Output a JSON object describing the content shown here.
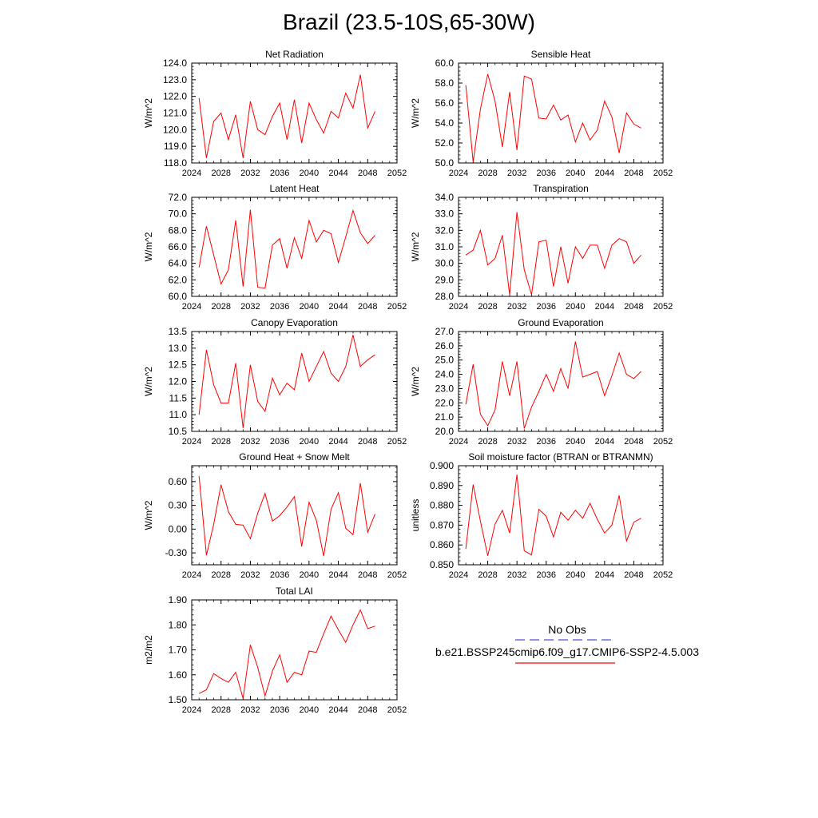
{
  "figure": {
    "title": "Brazil (23.5-10S,65-30W)"
  },
  "legend": {
    "items": [
      {
        "label": "No Obs",
        "color": "#5050d0",
        "style": "dashed"
      },
      {
        "label": "b.e21.BSSP245cmip6.f09_g17.CMIP6-SSP2-4.5.003",
        "color": "#ff0000",
        "style": "solid"
      }
    ]
  },
  "chart_data": [
    {
      "type": "line",
      "title": "Net Radiation",
      "ylabel": "W/m^2",
      "xlabel": "",
      "xlim": [
        2024,
        2052
      ],
      "ylim": [
        118,
        124
      ],
      "xticks": [
        "2024",
        "2028",
        "2032",
        "2036",
        "2040",
        "2044",
        "2048",
        "2052"
      ],
      "yticks": [
        "118.0",
        "119.0",
        "120.0",
        "121.0",
        "122.0",
        "123.0",
        "124.0"
      ],
      "x": [
        2025,
        2026,
        2027,
        2028,
        2029,
        2030,
        2031,
        2032,
        2033,
        2034,
        2035,
        2036,
        2037,
        2038,
        2039,
        2040,
        2041,
        2042,
        2043,
        2044,
        2045,
        2046,
        2047,
        2048,
        2049
      ],
      "series": [
        {
          "color": "#ff0000",
          "values": [
            121.9,
            118.3,
            120.5,
            121.0,
            119.4,
            120.9,
            118.3,
            121.7,
            120.0,
            119.7,
            120.8,
            121.6,
            119.4,
            121.8,
            119.2,
            121.6,
            120.6,
            119.8,
            121.1,
            120.7,
            122.2,
            121.3,
            123.3,
            120.1,
            121.1
          ]
        }
      ]
    },
    {
      "type": "line",
      "title": "Sensible Heat",
      "ylabel": "W/m^2",
      "xlabel": "",
      "xlim": [
        2024,
        2052
      ],
      "ylim": [
        50,
        60
      ],
      "xticks": [
        "2024",
        "2028",
        "2032",
        "2036",
        "2040",
        "2044",
        "2048",
        "2052"
      ],
      "yticks": [
        "50.0",
        "52.0",
        "54.0",
        "56.0",
        "58.0",
        "60.0"
      ],
      "x": [
        2025,
        2026,
        2027,
        2028,
        2029,
        2030,
        2031,
        2032,
        2033,
        2034,
        2035,
        2036,
        2037,
        2038,
        2039,
        2040,
        2041,
        2042,
        2043,
        2044,
        2045,
        2046,
        2047,
        2048,
        2049
      ],
      "series": [
        {
          "color": "#ff0000",
          "values": [
            57.8,
            50.1,
            55.4,
            58.9,
            56.2,
            51.6,
            57.1,
            51.3,
            58.7,
            58.4,
            54.5,
            54.4,
            55.8,
            54.3,
            54.8,
            52.1,
            54.0,
            52.3,
            53.3,
            56.2,
            54.6,
            51.0,
            55.0,
            53.9,
            53.5
          ]
        }
      ]
    },
    {
      "type": "line",
      "title": "Latent Heat",
      "ylabel": "W/m^2",
      "xlabel": "",
      "xlim": [
        2024,
        2052
      ],
      "ylim": [
        60,
        72
      ],
      "xticks": [
        "2024",
        "2028",
        "2032",
        "2036",
        "2040",
        "2044",
        "2048",
        "2052"
      ],
      "yticks": [
        "60.0",
        "62.0",
        "64.0",
        "66.0",
        "68.0",
        "70.0",
        "72.0"
      ],
      "x": [
        2025,
        2026,
        2027,
        2028,
        2029,
        2030,
        2031,
        2032,
        2033,
        2034,
        2035,
        2036,
        2037,
        2038,
        2039,
        2040,
        2041,
        2042,
        2043,
        2044,
        2045,
        2046,
        2047,
        2048,
        2049
      ],
      "series": [
        {
          "color": "#ff0000",
          "values": [
            63.5,
            68.5,
            65.0,
            61.5,
            63.2,
            69.2,
            61.2,
            70.5,
            61.1,
            61.0,
            66.2,
            67.0,
            63.4,
            67.1,
            64.6,
            69.2,
            66.6,
            68.0,
            67.6,
            64.1,
            67.2,
            70.4,
            67.7,
            66.4,
            67.4
          ]
        }
      ]
    },
    {
      "type": "line",
      "title": "Transpiration",
      "ylabel": "W/m^2",
      "xlabel": "",
      "xlim": [
        2024,
        2052
      ],
      "ylim": [
        28,
        34
      ],
      "xticks": [
        "2024",
        "2028",
        "2032",
        "2036",
        "2040",
        "2044",
        "2048",
        "2052"
      ],
      "yticks": [
        "28.0",
        "29.0",
        "30.0",
        "31.0",
        "32.0",
        "33.0",
        "34.0"
      ],
      "x": [
        2025,
        2026,
        2027,
        2028,
        2029,
        2030,
        2031,
        2032,
        2033,
        2034,
        2035,
        2036,
        2037,
        2038,
        2039,
        2040,
        2041,
        2042,
        2043,
        2044,
        2045,
        2046,
        2047,
        2048,
        2049
      ],
      "series": [
        {
          "color": "#ff0000",
          "values": [
            30.5,
            30.8,
            32.0,
            29.9,
            30.3,
            31.7,
            28.1,
            33.1,
            29.6,
            28.1,
            31.3,
            31.4,
            28.6,
            31.0,
            28.8,
            31.0,
            30.3,
            31.1,
            31.1,
            29.7,
            31.1,
            31.5,
            31.3,
            30.0,
            30.5
          ]
        }
      ]
    },
    {
      "type": "line",
      "title": "Canopy Evaporation",
      "ylabel": "W/m^2",
      "xlabel": "",
      "xlim": [
        2024,
        2052
      ],
      "ylim": [
        10.5,
        13.5
      ],
      "xticks": [
        "2024",
        "2028",
        "2032",
        "2036",
        "2040",
        "2044",
        "2048",
        "2052"
      ],
      "yticks": [
        "10.5",
        "11.0",
        "11.5",
        "12.0",
        "12.5",
        "13.0",
        "13.5"
      ],
      "x": [
        2025,
        2026,
        2027,
        2028,
        2029,
        2030,
        2031,
        2032,
        2033,
        2034,
        2035,
        2036,
        2037,
        2038,
        2039,
        2040,
        2041,
        2042,
        2043,
        2044,
        2045,
        2046,
        2047,
        2048,
        2049
      ],
      "series": [
        {
          "color": "#ff0000",
          "values": [
            11.0,
            12.95,
            11.9,
            11.35,
            11.35,
            12.55,
            10.6,
            12.5,
            11.4,
            11.1,
            12.1,
            11.6,
            11.95,
            11.75,
            12.85,
            12.0,
            12.45,
            12.9,
            12.25,
            12.0,
            12.45,
            13.4,
            12.45,
            12.65,
            12.8
          ]
        }
      ]
    },
    {
      "type": "line",
      "title": "Ground Evaporation",
      "ylabel": "W/m^2",
      "xlabel": "",
      "xlim": [
        2024,
        2052
      ],
      "ylim": [
        20,
        27
      ],
      "xticks": [
        "2024",
        "2028",
        "2032",
        "2036",
        "2040",
        "2044",
        "2048",
        "2052"
      ],
      "yticks": [
        "20.0",
        "21.0",
        "22.0",
        "23.0",
        "24.0",
        "25.0",
        "26.0",
        "27.0"
      ],
      "x": [
        2025,
        2026,
        2027,
        2028,
        2029,
        2030,
        2031,
        2032,
        2033,
        2034,
        2035,
        2036,
        2037,
        2038,
        2039,
        2040,
        2041,
        2042,
        2043,
        2044,
        2045,
        2046,
        2047,
        2048,
        2049
      ],
      "series": [
        {
          "color": "#ff0000",
          "values": [
            21.9,
            24.7,
            21.2,
            20.4,
            21.5,
            24.9,
            22.5,
            24.9,
            20.2,
            21.7,
            22.8,
            24.0,
            22.8,
            24.4,
            23.0,
            26.3,
            23.8,
            24.0,
            24.2,
            22.5,
            23.9,
            25.5,
            24.0,
            23.7,
            24.2
          ]
        }
      ]
    },
    {
      "type": "line",
      "title": "Ground Heat + Snow Melt",
      "ylabel": "W/m^2",
      "xlabel": "",
      "xlim": [
        2024,
        2052
      ],
      "ylim": [
        -0.45,
        0.8
      ],
      "xticks": [
        "2024",
        "2028",
        "2032",
        "2036",
        "2040",
        "2044",
        "2048",
        "2052"
      ],
      "yticks": [
        "-0.30",
        "0.00",
        "0.30",
        "0.60"
      ],
      "ytick_values": [
        -0.3,
        0.0,
        0.3,
        0.6
      ],
      "x": [
        2025,
        2026,
        2027,
        2028,
        2029,
        2030,
        2031,
        2032,
        2033,
        2034,
        2035,
        2036,
        2037,
        2038,
        2039,
        2040,
        2041,
        2042,
        2043,
        2044,
        2045,
        2046,
        2047,
        2048,
        2049
      ],
      "series": [
        {
          "color": "#ff0000",
          "values": [
            0.67,
            -0.33,
            0.06,
            0.56,
            0.22,
            0.06,
            0.05,
            -0.12,
            0.2,
            0.45,
            0.1,
            0.17,
            0.28,
            0.41,
            -0.22,
            0.34,
            0.11,
            -0.34,
            0.25,
            0.46,
            0.01,
            -0.07,
            0.58,
            -0.04,
            0.19
          ]
        }
      ]
    },
    {
      "type": "line",
      "title": "Soil moisture factor (BTRAN or BTRANMN)",
      "ylabel": "unitless",
      "xlabel": "",
      "xlim": [
        2024,
        2052
      ],
      "ylim": [
        0.85,
        0.9
      ],
      "xticks": [
        "2024",
        "2028",
        "2032",
        "2036",
        "2040",
        "2044",
        "2048",
        "2052"
      ],
      "yticks": [
        "0.850",
        "0.860",
        "0.870",
        "0.880",
        "0.890",
        "0.900"
      ],
      "x": [
        2025,
        2026,
        2027,
        2028,
        2029,
        2030,
        2031,
        2032,
        2033,
        2034,
        2035,
        2036,
        2037,
        2038,
        2039,
        2040,
        2041,
        2042,
        2043,
        2044,
        2045,
        2046,
        2047,
        2048,
        2049
      ],
      "series": [
        {
          "color": "#ff0000",
          "values": [
            0.858,
            0.8905,
            0.872,
            0.8545,
            0.8705,
            0.8775,
            0.866,
            0.8955,
            0.857,
            0.855,
            0.878,
            0.8745,
            0.864,
            0.8765,
            0.8725,
            0.8775,
            0.8735,
            0.881,
            0.873,
            0.866,
            0.87,
            0.885,
            0.862,
            0.8715,
            0.8735
          ]
        }
      ]
    },
    {
      "type": "line",
      "title": "Total LAI",
      "ylabel": "m2/m2",
      "xlabel": "",
      "xlim": [
        2024,
        2052
      ],
      "ylim": [
        1.5,
        1.9
      ],
      "xticks": [
        "2024",
        "2028",
        "2032",
        "2036",
        "2040",
        "2044",
        "2048",
        "2052"
      ],
      "yticks": [
        "1.50",
        "1.60",
        "1.70",
        "1.80",
        "1.90"
      ],
      "x": [
        2025,
        2026,
        2027,
        2028,
        2029,
        2030,
        2031,
        2032,
        2033,
        2034,
        2035,
        2036,
        2037,
        2038,
        2039,
        2040,
        2041,
        2042,
        2043,
        2044,
        2045,
        2046,
        2047,
        2048,
        2049
      ],
      "series": [
        {
          "color": "#ff0000",
          "values": [
            1.525,
            1.54,
            1.605,
            1.585,
            1.57,
            1.61,
            1.505,
            1.72,
            1.63,
            1.515,
            1.615,
            1.68,
            1.57,
            1.61,
            1.6,
            1.695,
            1.69,
            1.765,
            1.835,
            1.78,
            1.73,
            1.8,
            1.86,
            1.785,
            1.795
          ]
        }
      ]
    }
  ]
}
